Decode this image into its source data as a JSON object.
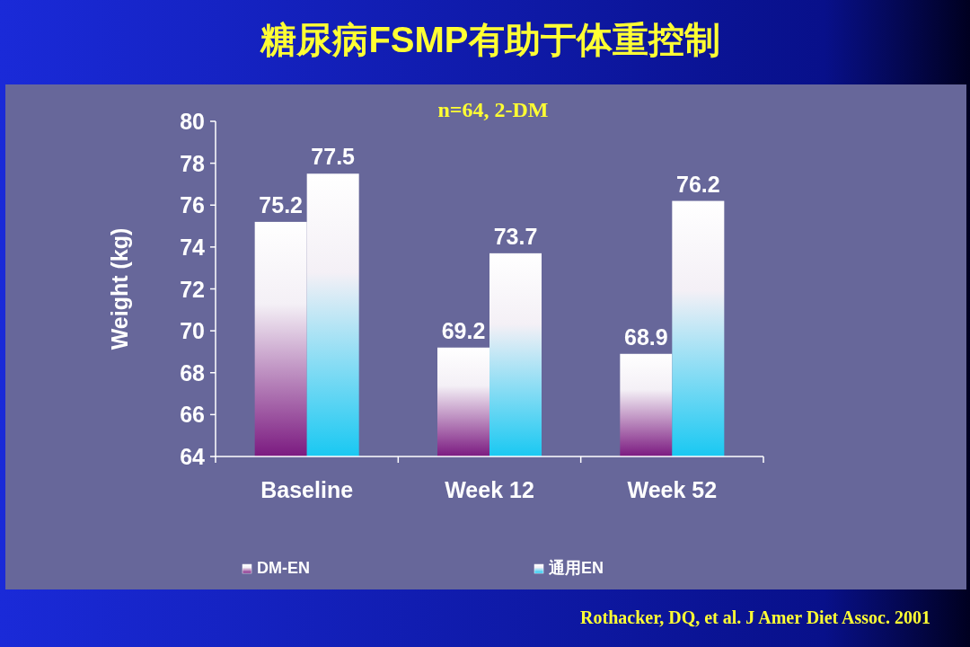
{
  "chart_data": {
    "type": "bar",
    "title": "糖尿病FSMP有助于体重控制",
    "ylabel": "Weight (kg)",
    "categories": [
      "Baseline",
      "Week 12",
      "Week 52"
    ],
    "series": [
      {
        "name": "DM-EN",
        "color": "#7b1a80",
        "values": [
          75.2,
          69.2,
          68.9
        ]
      },
      {
        "name": "通用EN",
        "color": "#19c8f2",
        "values": [
          77.5,
          73.7,
          76.2
        ]
      }
    ],
    "ylim": [
      64,
      80
    ],
    "yticks": [
      64,
      66,
      68,
      70,
      72,
      74,
      76,
      78,
      80
    ],
    "data_labels": true,
    "legend": "bottom",
    "grid": false,
    "annotations": [
      "n=64, 2-DM",
      "Rothacker, DQ, et al. J Amer Diet Assoc. 2001"
    ]
  }
}
